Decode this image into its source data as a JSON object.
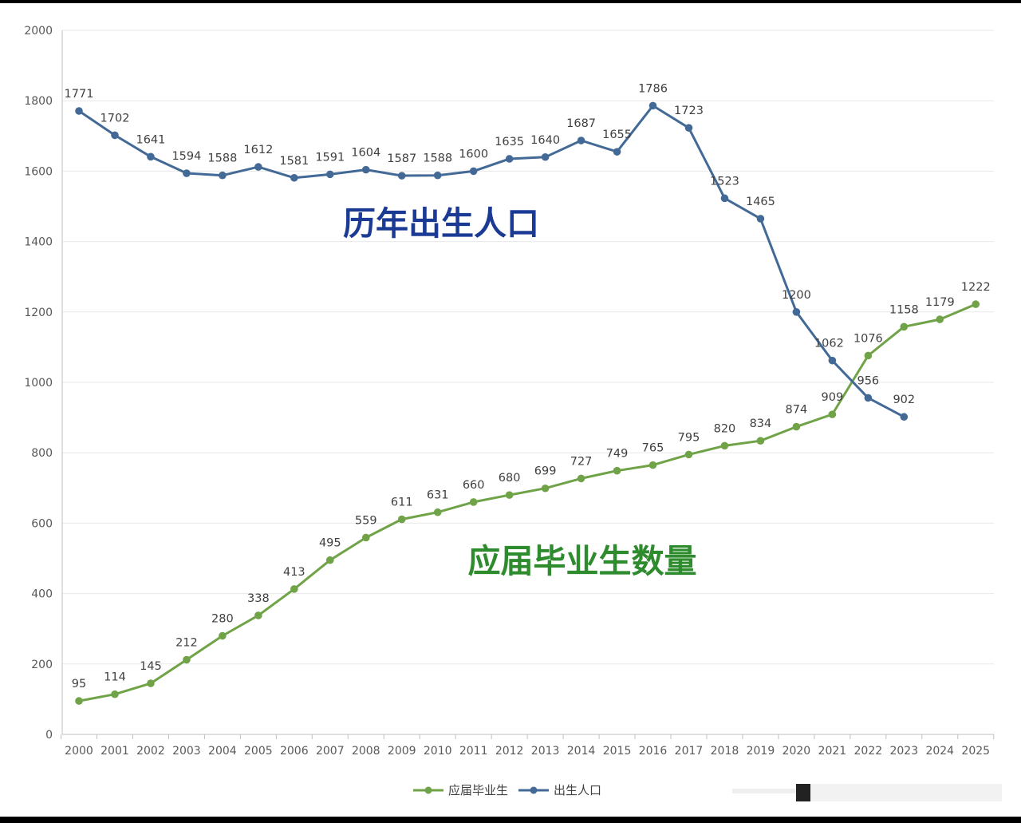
{
  "chart_data": {
    "type": "line",
    "x": [
      "2000",
      "2001",
      "2002",
      "2003",
      "2004",
      "2005",
      "2006",
      "2007",
      "2008",
      "2009",
      "2010",
      "2011",
      "2012",
      "2013",
      "2014",
      "2015",
      "2016",
      "2017",
      "2018",
      "2019",
      "2020",
      "2021",
      "2022",
      "2023",
      "2024",
      "2025"
    ],
    "ylim": [
      0,
      2000
    ],
    "yticks": [
      0,
      200,
      400,
      600,
      800,
      1000,
      1200,
      1400,
      1600,
      1800,
      2000
    ],
    "grid": true,
    "legend_position": "bottom-center",
    "series": [
      {
        "name": "应届毕业生",
        "color": "#70a347",
        "values": [
          95,
          114,
          145,
          212,
          280,
          338,
          413,
          495,
          559,
          611,
          631,
          660,
          680,
          699,
          727,
          749,
          765,
          795,
          820,
          834,
          874,
          909,
          1076,
          1158,
          1179,
          1222
        ],
        "labels": [
          "95",
          "114",
          "145",
          "212",
          "280",
          "338",
          "413",
          "495",
          "559",
          "611",
          "631",
          "660",
          "680",
          "699",
          "727",
          "749",
          "765",
          "795",
          "820",
          "834",
          "874",
          "909",
          "1076",
          "1158",
          "1179",
          "1222"
        ]
      },
      {
        "name": "出生人口",
        "color": "#436a96",
        "values": [
          1771,
          1702,
          1641,
          1594,
          1588,
          1612,
          1581,
          1591,
          1604,
          1587,
          1588,
          1600,
          1635,
          1640,
          1687,
          1655,
          1786,
          1723,
          1523,
          1465,
          1200,
          1062,
          956,
          902,
          null,
          null
        ],
        "labels": [
          "1771",
          "1702",
          "1641",
          "1594",
          "1588",
          "1612",
          "1581",
          "1591",
          "1604",
          "1587",
          "1588",
          "1600",
          "1635",
          "1640",
          "1687",
          "1655",
          "1786",
          "1723",
          "1523",
          "1465",
          "1200",
          "1062",
          "956",
          "902",
          null,
          null
        ]
      }
    ],
    "annotations": [
      {
        "text": "历年出生人口",
        "color": "#1a3a94"
      },
      {
        "text": "应届毕业生数量",
        "color": "#2e8b2e"
      }
    ]
  }
}
